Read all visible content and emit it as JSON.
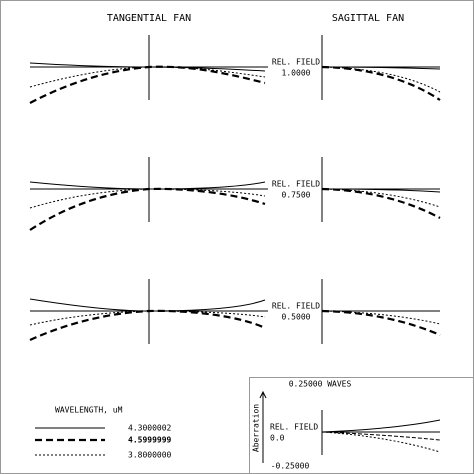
{
  "header": {
    "tangential": "TANGENTIAL FAN",
    "sagittal": "SAGITTAL FAN"
  },
  "fields": [
    {
      "label": "REL. FIELD",
      "value": "1.0000"
    },
    {
      "label": "REL. FIELD",
      "value": "0.7500"
    },
    {
      "label": "REL. FIELD",
      "value": "0.5000"
    },
    {
      "label": "REL. FIELD",
      "value": "0.0"
    }
  ],
  "scale": {
    "top": "0.25000 WAVES",
    "bottom": "-0.25000",
    "axis": "Aberration"
  },
  "legend": {
    "title": "WAVELENGTH, uM",
    "entries": [
      "4.3000002",
      "4.5999999",
      "3.8000000"
    ]
  }
}
